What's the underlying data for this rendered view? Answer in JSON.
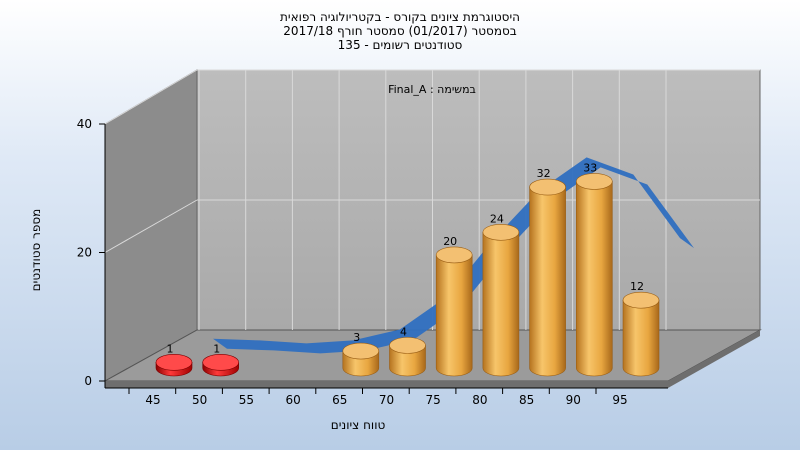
{
  "chart_data": {
    "type": "bar",
    "title_lines": [
      "היסטוגרמת ציונים בקורס - בקטריולוגיה רפואית",
      "בסמסטר  (01/2017)  סמסטר חורף 2017/18",
      "סטודנטים רשומים - 135"
    ],
    "legend": "במשימה : Final_A",
    "xlabel": "טווח ציונים",
    "ylabel": "מספר סטודנטים",
    "categories": [
      "45",
      "50",
      "55",
      "60",
      "65",
      "70",
      "75",
      "80",
      "85",
      "90",
      "95"
    ],
    "values": [
      1,
      1,
      0,
      0,
      3,
      4,
      20,
      24,
      32,
      33,
      12
    ],
    "bar_colors": [
      "red",
      "red",
      "red",
      "orange",
      "orange",
      "orange",
      "orange",
      "orange",
      "orange",
      "orange",
      "orange"
    ],
    "yticks": [
      0,
      20,
      40
    ],
    "ylim": [
      0,
      40
    ],
    "trend_line_color": "#2f6fc0",
    "grid": true
  },
  "colors": {
    "fail_bar": "#e01010",
    "pass_bar": "#e8a640",
    "trend": "#2f6fc0",
    "trend_low": "#7a7a7a"
  }
}
